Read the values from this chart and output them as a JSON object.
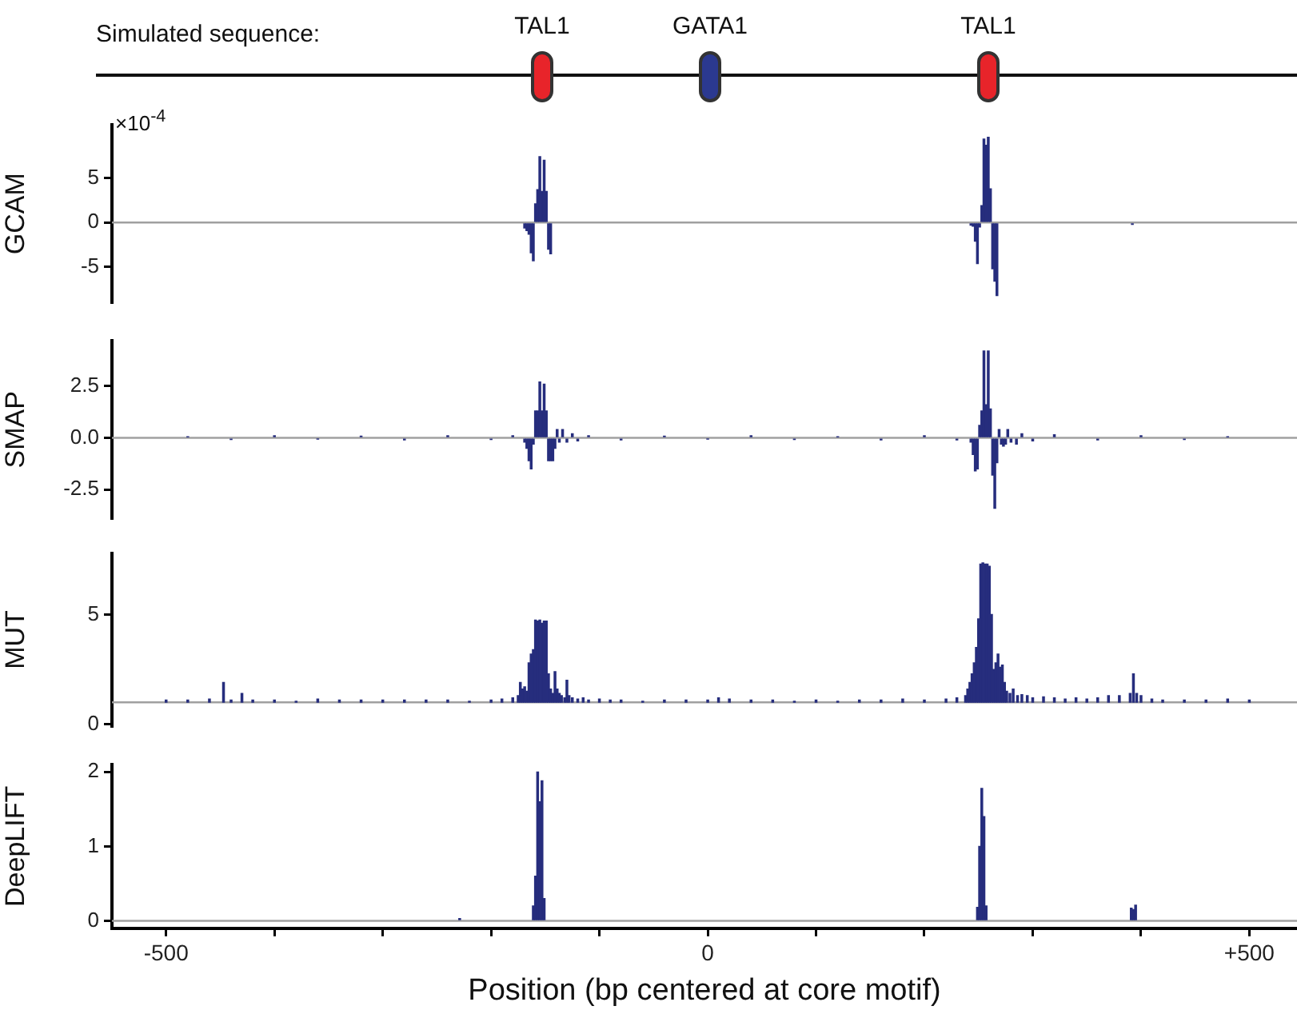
{
  "chart_data": [
    {
      "type": "other",
      "title": "Simulated sequence:",
      "categories": [
        "TAL1",
        "GATA1",
        "TAL1"
      ],
      "colors": [
        "#e8242a",
        "#2b3990",
        "#e8242a"
      ]
    },
    {
      "type": "bar",
      "ylabel": "GCAM",
      "annotations": [
        "×10$^{-4}$"
      ],
      "color": "#262d7d",
      "xlim": [
        -550,
        544
      ],
      "ylim": [
        -9,
        11
      ],
      "yticks": [
        -5,
        0,
        5
      ],
      "grid": false,
      "tick_labels": "y",
      "ref_lines": [
        {
          "axis": "y",
          "value": 0,
          "color": "#a0a0a0"
        }
      ],
      "x": [
        -169,
        -167,
        -165,
        -163,
        -161,
        -159,
        -157,
        -155,
        -153,
        -151,
        -149,
        -147,
        -145,
        243,
        245,
        247,
        249,
        251,
        253,
        255,
        257,
        259,
        261,
        263,
        265,
        267,
        392
      ],
      "values": [
        -0.6,
        -0.9,
        -1.3,
        -3.4,
        -4.3,
        2.1,
        3.7,
        7.4,
        3.5,
        7.0,
        3.5,
        -3.0,
        -3.5,
        -0.3,
        -0.4,
        -2.1,
        -4.6,
        -0.5,
        1.9,
        9.4,
        8.7,
        9.6,
        3.8,
        -5.2,
        -6.6,
        -8.2,
        -0.2
      ]
    },
    {
      "type": "bar",
      "ylabel": "SMAP",
      "color": "#262d7d",
      "xlim": [
        -550,
        544
      ],
      "ylim": [
        -3.9,
        4.7
      ],
      "yticks": [
        -2.5,
        {
          "value": 0,
          "label": "0.0"
        },
        2.5
      ],
      "grid": false,
      "tick_labels": "y",
      "ref_lines": [
        {
          "axis": "y",
          "value": 0,
          "color": "#a0a0a0"
        }
      ],
      "x": [
        -480,
        -440,
        -400,
        -360,
        -320,
        -280,
        -240,
        -200,
        -180,
        -169,
        -167,
        -165,
        -163,
        -161,
        -159,
        -157,
        -155,
        -153,
        -151,
        -149,
        -147,
        -145,
        -143,
        -141,
        -139,
        -137,
        -134,
        -130,
        -125,
        -120,
        -110,
        -80,
        -40,
        0,
        40,
        80,
        120,
        160,
        200,
        230,
        243,
        245,
        247,
        249,
        251,
        253,
        255,
        257,
        259,
        261,
        263,
        265,
        267,
        269,
        271,
        273,
        275,
        277,
        280,
        285,
        290,
        300,
        320,
        360,
        400,
        440,
        480
      ],
      "values": [
        0.05,
        -0.08,
        0.1,
        -0.05,
        0.08,
        -0.1,
        0.1,
        -0.08,
        0.1,
        -0.2,
        -0.5,
        -1.1,
        -1.5,
        -0.3,
        1.3,
        1.3,
        2.7,
        1.3,
        2.6,
        1.3,
        -1.1,
        -1.1,
        -1.1,
        -0.5,
        0.4,
        -0.2,
        0.4,
        -0.2,
        0.2,
        -0.15,
        0.1,
        -0.1,
        0.08,
        -0.05,
        0.1,
        -0.08,
        0.05,
        -0.1,
        0.1,
        -0.1,
        -0.2,
        -0.8,
        -1.6,
        -1.5,
        0.6,
        1.3,
        4.2,
        1.6,
        4.2,
        1.4,
        -1.8,
        -3.4,
        -1.2,
        0.4,
        -0.3,
        -0.4,
        -0.3,
        0.4,
        -0.2,
        -0.3,
        0.2,
        -0.15,
        0.15,
        -0.1,
        0.1,
        -0.08,
        0.05
      ]
    },
    {
      "type": "bar",
      "ylabel": "MUT",
      "color": "#262d7d",
      "xlim": [
        -550,
        544
      ],
      "ylim": [
        -0.1,
        7.8
      ],
      "yticks": [
        0,
        5
      ],
      "grid": false,
      "tick_labels": "y",
      "ref_lines": [
        {
          "axis": "y",
          "value": 1,
          "color": "#a0a0a0"
        }
      ],
      "x": [
        -500,
        -480,
        -460,
        -447,
        -440,
        -430,
        -420,
        -400,
        -380,
        -360,
        -340,
        -320,
        -300,
        -280,
        -260,
        -240,
        -220,
        -200,
        -190,
        -180,
        -175,
        -173,
        -171,
        -169,
        -167,
        -165,
        -163,
        -161,
        -159,
        -157,
        -155,
        -153,
        -151,
        -149,
        -147,
        -145,
        -143,
        -141,
        -139,
        -137,
        -135,
        -132,
        -130,
        -128,
        -125,
        -120,
        -115,
        -110,
        -100,
        -90,
        -80,
        -60,
        -40,
        -20,
        0,
        10,
        20,
        40,
        60,
        80,
        100,
        120,
        140,
        160,
        180,
        200,
        220,
        230,
        238,
        240,
        242,
        244,
        246,
        248,
        250,
        252,
        254,
        256,
        258,
        260,
        262,
        264,
        266,
        268,
        270,
        272,
        274,
        276,
        279,
        282,
        286,
        290,
        295,
        300,
        310,
        320,
        330,
        340,
        350,
        360,
        370,
        380,
        390,
        393,
        396,
        400,
        410,
        420,
        440,
        460,
        480,
        500
      ],
      "values": [
        0.1,
        0.1,
        0.15,
        0.9,
        0.1,
        0.4,
        0.1,
        0.1,
        0.05,
        0.15,
        0.1,
        0.1,
        0.1,
        0.1,
        0.1,
        0.1,
        0.05,
        0.1,
        0.15,
        0.2,
        0.3,
        0.9,
        0.6,
        0.7,
        0.5,
        1.8,
        2.2,
        2.4,
        3.75,
        3.7,
        3.75,
        3.6,
        3.7,
        3.7,
        1.3,
        0.6,
        0.4,
        1.4,
        0.6,
        0.4,
        0.3,
        0.2,
        1.0,
        0.3,
        0.2,
        0.15,
        0.2,
        0.1,
        0.15,
        0.1,
        0.1,
        0.05,
        0.1,
        0.1,
        0.1,
        0.2,
        0.15,
        0.1,
        0.1,
        0.05,
        0.1,
        0.05,
        0.1,
        0.1,
        0.15,
        0.1,
        0.15,
        0.2,
        0.3,
        0.6,
        0.9,
        1.3,
        1.8,
        2.5,
        3.8,
        6.3,
        6.35,
        6.3,
        6.3,
        6.2,
        4.0,
        1.5,
        1.8,
        2.2,
        1.6,
        1.7,
        0.9,
        0.5,
        0.4,
        0.6,
        0.3,
        0.35,
        0.3,
        0.2,
        0.25,
        0.2,
        0.15,
        0.2,
        0.15,
        0.2,
        0.3,
        0.3,
        0.4,
        1.3,
        0.4,
        0.3,
        0.15,
        0.1,
        0.1,
        0.1,
        0.15,
        0.1
      ],
      "base": [
        1,
        1,
        1,
        1,
        1,
        1,
        1,
        1,
        1,
        1,
        1,
        1,
        1,
        1,
        1,
        1,
        1,
        1,
        1,
        1,
        1,
        1,
        1,
        1,
        1,
        1,
        1,
        1,
        1,
        1,
        1,
        1,
        1,
        1,
        1,
        1,
        1,
        1,
        1,
        1,
        1,
        1,
        1,
        1,
        1,
        1,
        1,
        1,
        1,
        1,
        1,
        1,
        1,
        1,
        1,
        1,
        1,
        1,
        1,
        1,
        1,
        1,
        1,
        1,
        1,
        1,
        1,
        1,
        1,
        1,
        1,
        1,
        1,
        1,
        1,
        1,
        1,
        1,
        1,
        1,
        1,
        1,
        1,
        1,
        1,
        1,
        1,
        1,
        1,
        1,
        1,
        1,
        1,
        1,
        1,
        1,
        1,
        1,
        1,
        1,
        1,
        1,
        1,
        1,
        1,
        1,
        1,
        1,
        1,
        1,
        1,
        1
      ]
    },
    {
      "type": "bar",
      "ylabel": "DeepLIFT",
      "xlabel": "Position (bp centered at core motif)",
      "color": "#262d7d",
      "xlim": [
        -550,
        544
      ],
      "ylim": [
        -0.1,
        2.1
      ],
      "yticks": [
        0,
        1,
        2
      ],
      "xticks": [
        {
          "value": -500,
          "label": "-500"
        },
        {
          "value": -400,
          "label": null
        },
        {
          "value": -300,
          "label": null
        },
        {
          "value": -200,
          "label": null
        },
        {
          "value": -100,
          "label": null
        },
        0,
        {
          "value": 100,
          "label": null
        },
        {
          "value": 200,
          "label": null
        },
        {
          "value": 300,
          "label": null
        },
        {
          "value": 400,
          "label": null
        },
        {
          "value": 500,
          "label": "+500"
        }
      ],
      "grid": false,
      "ref_lines": [
        {
          "axis": "y",
          "value": 0,
          "color": "#a0a0a0"
        }
      ],
      "x": [
        -229,
        -161,
        -159,
        -157,
        -155,
        -153,
        -151,
        249,
        251,
        253,
        255,
        257,
        391,
        393,
        395
      ],
      "values": [
        0.03,
        0.2,
        0.6,
        2.0,
        1.6,
        1.88,
        0.3,
        0.18,
        1.0,
        1.78,
        1.4,
        0.2,
        0.17,
        0.15,
        0.21
      ]
    }
  ]
}
